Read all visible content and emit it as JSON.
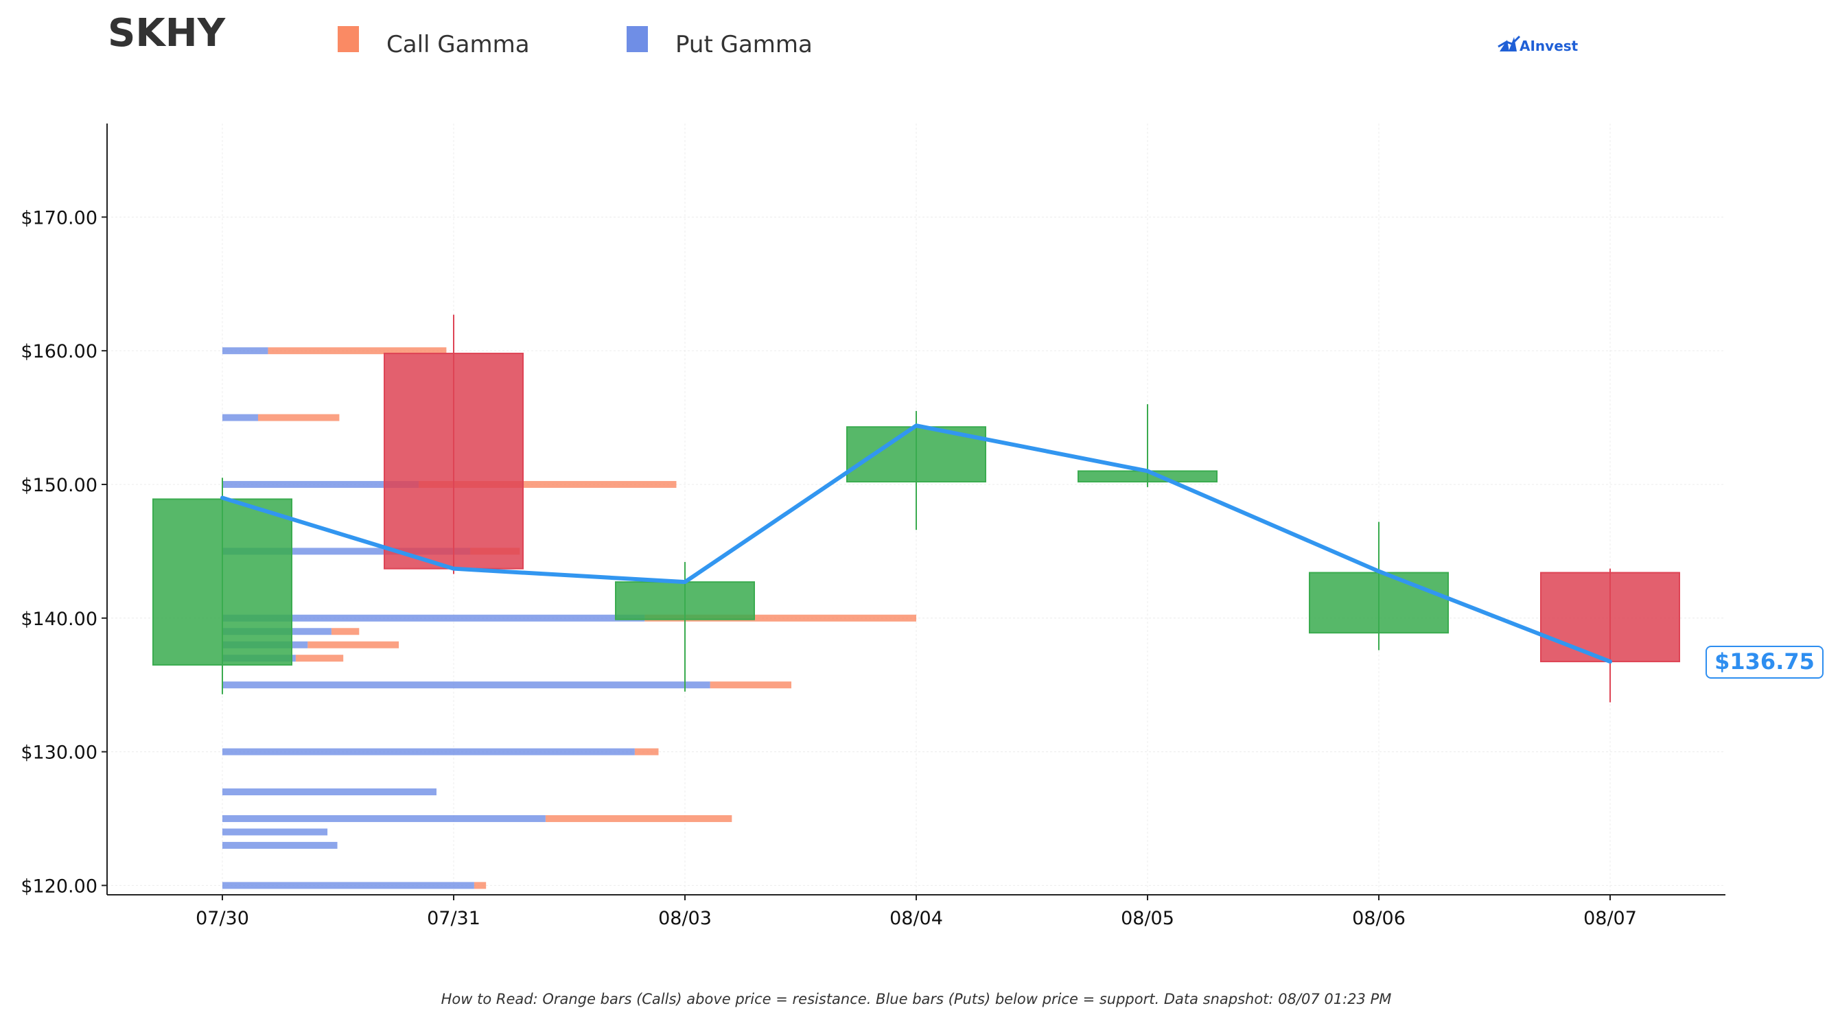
{
  "header": {
    "ticker": "SKHY",
    "brand": "AInvest"
  },
  "legend": {
    "call_label": "Call Gamma",
    "put_label": "Put Gamma"
  },
  "footnote": "How to Read: Orange bars (Calls) above price = resistance. Blue bars (Puts) below price = support. Data snapshot: 08/07 01:23 PM",
  "colors": {
    "call": "#fa8a64",
    "put": "#6f8ee6",
    "up": "#3aab4f",
    "down": "#de4455",
    "price_line": "#3296f0",
    "grid": "#ececec",
    "axis": "#222222"
  },
  "chart_data": {
    "type": "candlestick",
    "title": "SKHY",
    "categories": [
      "07/30",
      "07/31",
      "08/03",
      "08/04",
      "08/05",
      "08/06",
      "08/07"
    ],
    "ylim": [
      119.3,
      177.0
    ],
    "yticks": [
      120,
      130,
      140,
      150,
      160,
      170
    ],
    "ytick_labels": [
      "$120.00",
      "$130.00",
      "$140.00",
      "$150.00",
      "$160.00",
      "$170.00"
    ],
    "candles": [
      {
        "date": "07/30",
        "open": 136.5,
        "high": 150.5,
        "low": 134.3,
        "close": 148.9
      },
      {
        "date": "07/31",
        "open": 159.8,
        "high": 162.7,
        "low": 143.3,
        "close": 143.7
      },
      {
        "date": "08/03",
        "open": 139.9,
        "high": 144.2,
        "low": 134.5,
        "close": 142.7
      },
      {
        "date": "08/04",
        "open": 150.2,
        "high": 155.5,
        "low": 146.6,
        "close": 154.3
      },
      {
        "date": "08/05",
        "open": 150.2,
        "high": 156.0,
        "low": 149.8,
        "close": 151.0
      },
      {
        "date": "08/06",
        "open": 138.9,
        "high": 147.2,
        "low": 137.6,
        "close": 143.4
      },
      {
        "date": "08/07",
        "open": 143.4,
        "high": 143.7,
        "low": 133.7,
        "close": 136.75
      }
    ],
    "price_line": [
      149.0,
      143.7,
      142.7,
      154.4,
      151.0,
      143.5,
      136.75
    ],
    "last_price_label": "$136.75",
    "gamma_axis_max": 7.0,
    "gamma_levels": [
      {
        "strike": 160,
        "put": 0.23,
        "total": 1.13
      },
      {
        "strike": 155,
        "put": 0.18,
        "total": 0.59
      },
      {
        "strike": 150,
        "put": 0.99,
        "total": 2.29
      },
      {
        "strike": 145,
        "put": 1.25,
        "total": 1.5
      },
      {
        "strike": 140,
        "put": 2.13,
        "total": 3.5
      },
      {
        "strike": 139,
        "put": 0.55,
        "total": 0.69
      },
      {
        "strike": 138,
        "put": 0.43,
        "total": 0.89
      },
      {
        "strike": 137,
        "put": 0.37,
        "total": 0.61
      },
      {
        "strike": 135,
        "put": 2.46,
        "total": 2.87
      },
      {
        "strike": 130,
        "put": 2.08,
        "total": 2.2
      },
      {
        "strike": 127,
        "put": 1.08,
        "total": 1.08
      },
      {
        "strike": 125,
        "put": 1.63,
        "total": 2.57
      },
      {
        "strike": 124,
        "put": 0.53,
        "total": 0.53
      },
      {
        "strike": 123,
        "put": 0.58,
        "total": 0.58
      },
      {
        "strike": 120,
        "put": 1.27,
        "total": 1.33
      }
    ]
  }
}
